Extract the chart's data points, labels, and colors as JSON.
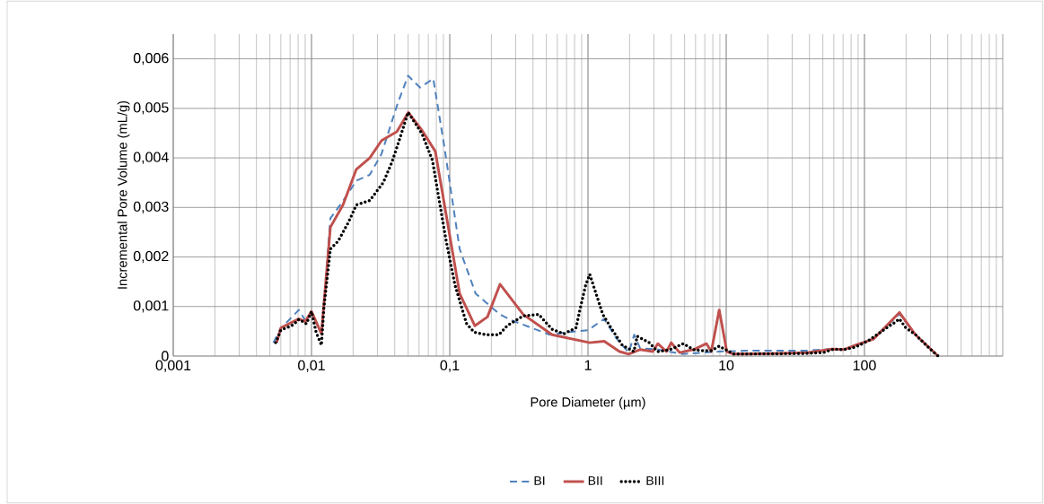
{
  "chart_data": {
    "type": "line",
    "xlabel": "Pore Diameter  (µm)",
    "ylabel": "Incremental Pore Volume  (mL/g)",
    "log": "x",
    "grid": true,
    "legend": "bottom",
    "xlim": [
      0.001,
      1000
    ],
    "ylim": [
      0,
      0.0065
    ],
    "xticks": [
      {
        "value": 0.001,
        "label": "0,001"
      },
      {
        "value": 0.01,
        "label": "0,01"
      },
      {
        "value": 0.1,
        "label": "0,1"
      },
      1,
      10,
      100,
      {
        "value": 1000,
        "label": null
      }
    ],
    "yticks": [
      0,
      {
        "value": 0.001,
        "label": "0,001"
      },
      {
        "value": 0.002,
        "label": "0,002"
      },
      {
        "value": 0.003,
        "label": "0,003"
      },
      {
        "value": 0.004,
        "label": "0,004"
      },
      {
        "value": 0.005,
        "label": "0,005"
      },
      {
        "value": 0.006,
        "label": "0,006"
      }
    ],
    "series": [
      {
        "name": "BI",
        "color": "#4f81bd",
        "line_style": "dashed",
        "x": [
          0.0053,
          0.006,
          0.0081,
          0.009,
          0.01,
          0.0118,
          0.0137,
          0.0169,
          0.0211,
          0.0264,
          0.0321,
          0.042,
          0.05,
          0.061,
          0.076,
          0.091,
          0.118,
          0.154,
          0.231,
          0.28,
          0.53,
          0.76,
          1.0,
          1.31,
          1.6,
          1.97,
          2.16,
          2.38,
          3.2,
          4.8,
          8.9,
          14.6,
          39,
          58,
          71,
          86,
          116,
          179,
          234,
          341
        ],
        "values": [
          0.00027,
          0.00056,
          0.00093,
          0.00072,
          0.0009,
          0.00045,
          0.00278,
          0.00313,
          0.00354,
          0.00366,
          0.00408,
          0.0051,
          0.00566,
          0.00542,
          0.0056,
          0.00426,
          0.00216,
          0.00126,
          0.00084,
          0.00072,
          0.00043,
          0.00049,
          0.00052,
          0.00075,
          0.00036,
          7e-05,
          0.00043,
          0.00016,
          0.00013,
          4e-05,
          9e-05,
          0.00011,
          0.00011,
          0.00014,
          0.00013,
          0.00022,
          0.00034,
          0.00085,
          0.00043,
          0
        ]
      },
      {
        "name": "BII",
        "color": "#c0504d",
        "line_style": "solid",
        "x": [
          0.0056,
          0.006,
          0.0081,
          0.009,
          0.01,
          0.0118,
          0.0137,
          0.0169,
          0.0211,
          0.0264,
          0.0321,
          0.0415,
          0.0502,
          0.0629,
          0.0787,
          0.118,
          0.152,
          0.1875,
          0.231,
          0.34,
          0.55,
          1.03,
          1.31,
          1.69,
          1.97,
          2.38,
          2.94,
          3.2,
          3.7,
          4.0,
          4.6,
          5.8,
          7.2,
          7.8,
          8.9,
          10.1,
          11.3,
          21.4,
          39,
          58,
          71,
          86,
          116,
          179,
          234,
          341
        ],
        "values": [
          0.00027,
          0.00057,
          0.00075,
          0.0007,
          0.0009,
          0.00045,
          0.0026,
          0.00305,
          0.00377,
          0.004,
          0.00435,
          0.00453,
          0.00492,
          0.00456,
          0.00413,
          0.00126,
          0.00061,
          0.00079,
          0.00145,
          0.00084,
          0.00043,
          0.00027,
          0.0003,
          9e-05,
          4e-05,
          0.00013,
          9e-05,
          0.00025,
          9e-05,
          0.00027,
          7e-05,
          0.00013,
          0.00025,
          9e-05,
          0.00093,
          9e-05,
          4e-05,
          5e-05,
          7e-05,
          0.00014,
          0.00013,
          0.00022,
          0.00034,
          0.00088,
          0.00043,
          0
        ]
      },
      {
        "name": "BIII",
        "color": "#000000",
        "line_style": "dotted",
        "x": [
          0.0055,
          0.006,
          0.0074,
          0.0081,
          0.0092,
          0.01,
          0.0108,
          0.0118,
          0.0123,
          0.0137,
          0.0156,
          0.0185,
          0.0211,
          0.0264,
          0.033,
          0.038,
          0.0426,
          0.05,
          0.063,
          0.075,
          0.085,
          0.094,
          0.109,
          0.132,
          0.15,
          0.184,
          0.227,
          0.26,
          0.34,
          0.44,
          0.55,
          0.67,
          0.82,
          0.88,
          0.96,
          1.03,
          1.15,
          1.28,
          1.49,
          1.77,
          2.15,
          2.27,
          2.77,
          3.2,
          3.93,
          4.9,
          5.8,
          6.5,
          7.8,
          8.9,
          10.5,
          11.4,
          35,
          50.6,
          60,
          71,
          86,
          107,
          140,
          166,
          179,
          199,
          234,
          272,
          312,
          341
        ],
        "values": [
          0.00027,
          0.00052,
          0.00063,
          0.00074,
          0.00065,
          0.0009,
          0.00048,
          0.00022,
          0.00099,
          0.00216,
          0.00232,
          0.0027,
          0.00305,
          0.00314,
          0.0035,
          0.0039,
          0.00431,
          0.00492,
          0.00449,
          0.00395,
          0.00305,
          0.00234,
          0.00144,
          0.00066,
          0.00048,
          0.00043,
          0.00043,
          0.00061,
          0.00081,
          0.00084,
          0.00054,
          0.00045,
          0.00057,
          0.00097,
          0.00142,
          0.00165,
          0.00124,
          0.00084,
          0.00054,
          0.00022,
          9e-05,
          0.0004,
          0.00027,
          9e-05,
          0.00013,
          0.00025,
          0.00013,
          0.00011,
          0.00011,
          0.0002,
          9e-05,
          4e-05,
          5e-05,
          7e-05,
          0.00014,
          0.00013,
          0.00018,
          0.00031,
          0.00054,
          0.00068,
          0.00075,
          0.00057,
          0.00043,
          0.00025,
          9e-05,
          0
        ]
      }
    ]
  }
}
